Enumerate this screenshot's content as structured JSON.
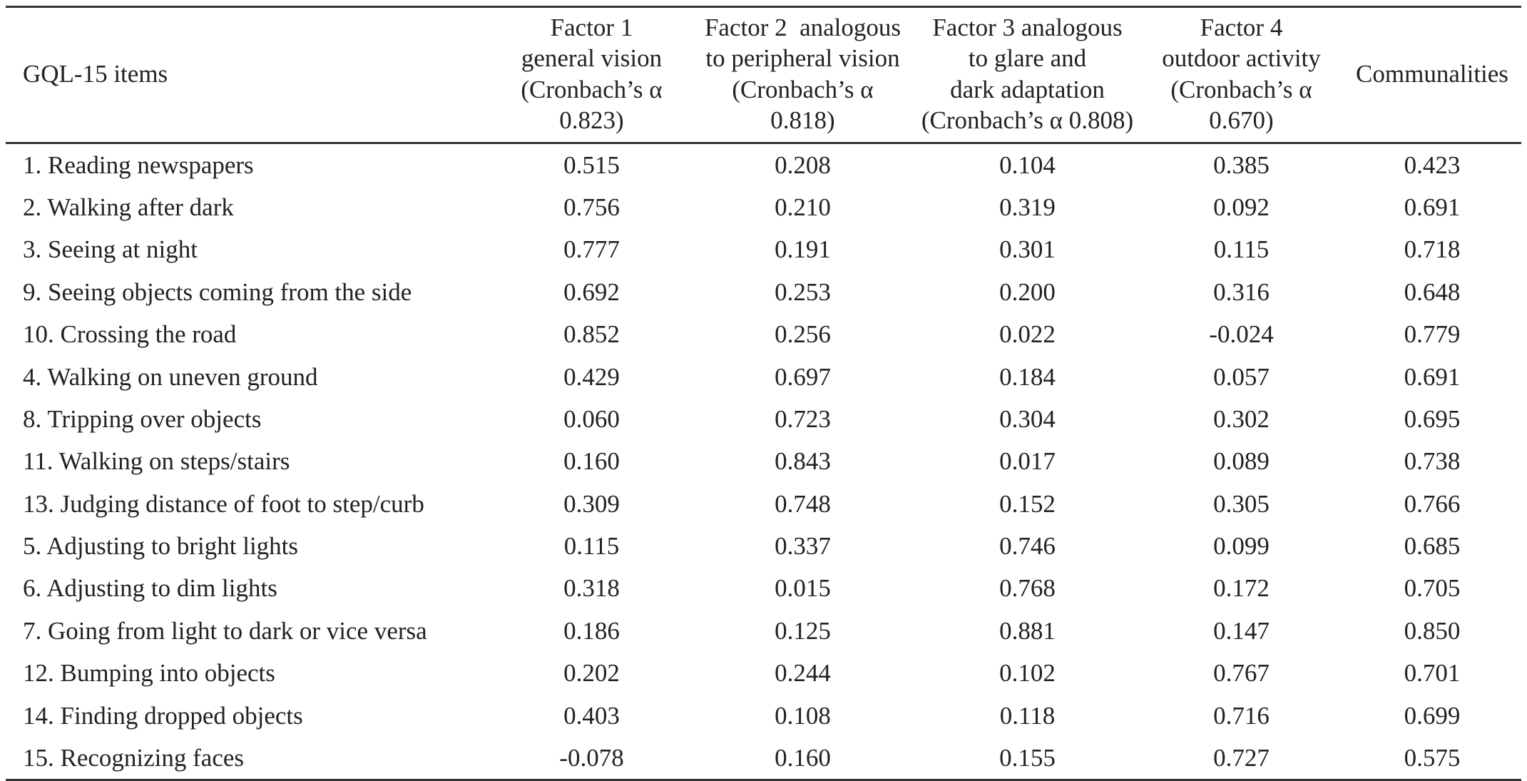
{
  "table": {
    "headers": [
      {
        "lines": [
          "GQL-15 items"
        ]
      },
      {
        "lines": [
          "Factor 1",
          "general vision",
          "(Cronbach’s α",
          "0.823)"
        ]
      },
      {
        "lines": [
          "Factor 2  analogous",
          "to peripheral vision",
          "(Cronbach’s α",
          "0.818)"
        ]
      },
      {
        "lines": [
          "Factor 3 analogous",
          "to glare and",
          "dark adaptation",
          "(Cronbach’s α 0.808)"
        ]
      },
      {
        "lines": [
          "Factor 4",
          "outdoor activity",
          "(Cronbach’s α",
          "0.670)"
        ]
      },
      {
        "lines": [
          "Communalities"
        ]
      }
    ],
    "rows": [
      [
        "1. Reading newspapers",
        "0.515",
        "0.208",
        "0.104",
        "0.385",
        "0.423"
      ],
      [
        "2. Walking after dark",
        "0.756",
        "0.210",
        "0.319",
        "0.092",
        "0.691"
      ],
      [
        "3. Seeing at night",
        "0.777",
        "0.191",
        "0.301",
        "0.115",
        "0.718"
      ],
      [
        "9. Seeing objects coming from the side",
        "0.692",
        "0.253",
        "0.200",
        "0.316",
        "0.648"
      ],
      [
        "10. Crossing the road",
        "0.852",
        "0.256",
        "0.022",
        "-0.024",
        "0.779"
      ],
      [
        "4. Walking on uneven ground",
        "0.429",
        "0.697",
        "0.184",
        "0.057",
        "0.691"
      ],
      [
        "8. Tripping over objects",
        "0.060",
        "0.723",
        "0.304",
        "0.302",
        "0.695"
      ],
      [
        "11. Walking on steps/stairs",
        "0.160",
        "0.843",
        "0.017",
        "0.089",
        "0.738"
      ],
      [
        "13. Judging distance of foot to step/curb",
        "0.309",
        "0.748",
        "0.152",
        "0.305",
        "0.766"
      ],
      [
        "5. Adjusting to bright lights",
        "0.115",
        "0.337",
        "0.746",
        "0.099",
        "0.685"
      ],
      [
        "6. Adjusting to dim lights",
        "0.318",
        "0.015",
        "0.768",
        "0.172",
        "0.705"
      ],
      [
        "7. Going from light to dark or vice versa",
        "0.186",
        "0.125",
        "0.881",
        "0.147",
        "0.850"
      ],
      [
        "12. Bumping into objects",
        "0.202",
        "0.244",
        "0.102",
        "0.767",
        "0.701"
      ],
      [
        "14. Finding dropped objects",
        "0.403",
        "0.108",
        "0.118",
        "0.716",
        "0.699"
      ],
      [
        "15. Recognizing faces",
        "-0.078",
        "0.160",
        "0.155",
        "0.727",
        "0.575"
      ]
    ]
  }
}
